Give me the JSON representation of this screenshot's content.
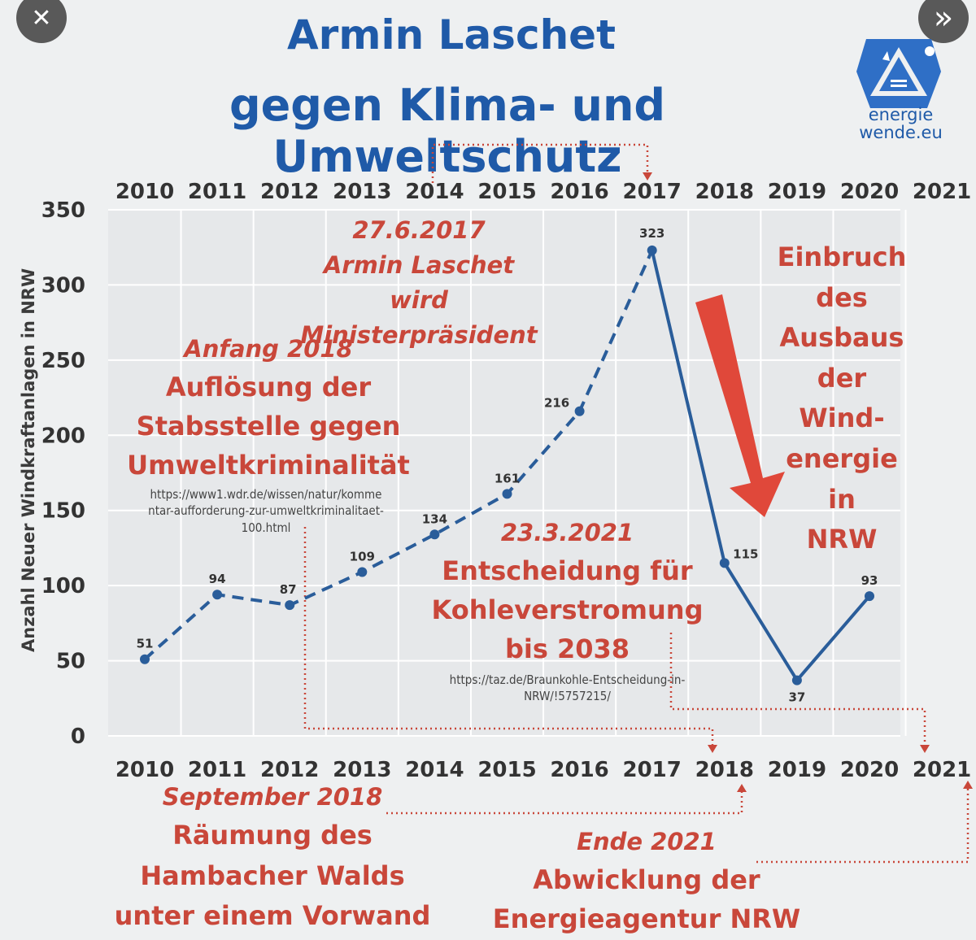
{
  "ui": {
    "close_icon": "close-icon",
    "forward_icon": "double-chevron-right-icon",
    "close_glyph": "✕",
    "forward_glyph": "»"
  },
  "logo": {
    "line1": "energie",
    "line2": "wende.eu"
  },
  "title": {
    "line1": "Armin Laschet",
    "line2": "gegen Klima- und Umweltschutz"
  },
  "annotations": {
    "a2017": {
      "date": "27.6.2017",
      "l1": "Armin Laschet",
      "l2": "wird Ministerpräsident"
    },
    "a2018": {
      "date": "Anfang 2018",
      "l1": "Auflösung der",
      "l2": "Stabsstelle gegen",
      "l3": "Umweltkriminalität",
      "url1": "https://www1.wdr.de/wissen/natur/komme",
      "url2": "ntar-aufforderung-zur-umweltkriminalitaet-",
      "url3": "100.html"
    },
    "a2021": {
      "date": "23.3.2021",
      "l1": "Entscheidung für",
      "l2": "Kohleverstromung",
      "l3": "bis 2038",
      "url1": "https://taz.de/Braunkohle-Entscheidung-in-",
      "url2": "NRW/!5757215/"
    },
    "einbruch": [
      "Einbruch",
      "des",
      "Ausbaus",
      "der",
      "Wind-",
      "energie",
      "in",
      "NRW"
    ],
    "sep2018": {
      "date": "September 2018",
      "l1": "Räumung des",
      "l2": "Hambacher Walds",
      "l3": "unter einem Vorwand"
    },
    "ende2021": {
      "date": "Ende 2021",
      "l1": "Abwicklung der",
      "l2": "Energieagentur NRW"
    }
  },
  "colors": {
    "line": "#2a5d9a",
    "annotation": "#c9473a",
    "arrow": "#e0483a",
    "title": "#1f5aa8",
    "grid": "#ffffff"
  },
  "chart_data": {
    "type": "line",
    "ylabel": "Anzahl Neuer Windkraftanlagen in NRW",
    "ylim": [
      0,
      350
    ],
    "yticks": [
      0,
      50,
      100,
      150,
      200,
      250,
      300,
      350
    ],
    "categories": [
      "2010",
      "2011",
      "2012",
      "2013",
      "2014",
      "2015",
      "2016",
      "2017",
      "2018",
      "2019",
      "2020",
      "2021"
    ],
    "series": [
      {
        "style": "dashed",
        "x": [
          "2010",
          "2011",
          "2012",
          "2013",
          "2014",
          "2015",
          "2016",
          "2017"
        ],
        "values": [
          51,
          94,
          87,
          109,
          134,
          161,
          216,
          323
        ]
      },
      {
        "style": "solid",
        "x": [
          "2017",
          "2018",
          "2019",
          "2020"
        ],
        "values": [
          323,
          115,
          37,
          93
        ]
      }
    ],
    "grid": true
  }
}
